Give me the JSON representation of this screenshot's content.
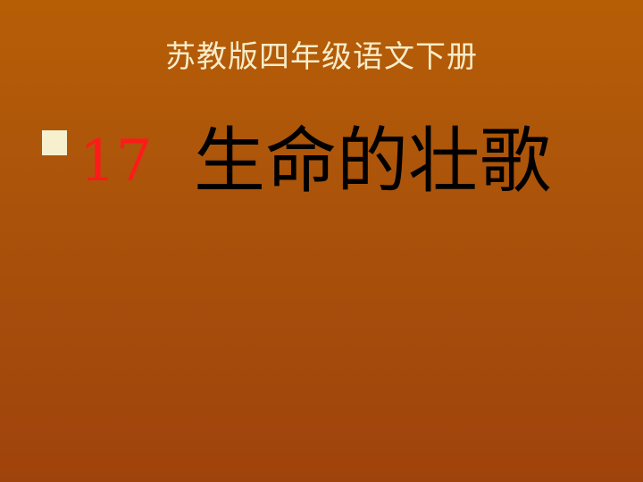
{
  "slide": {
    "subtitle": "苏教版四年级语文下册",
    "lesson_number": "17",
    "lesson_title": "生命的壮歌",
    "colors": {
      "background_top": "#b65e06",
      "background_bottom": "#9f430c",
      "subtitle": "#f7ecc9",
      "lesson_number": "#ff1a1a",
      "lesson_title": "#000000",
      "bullet": "#f6f0cf"
    }
  }
}
